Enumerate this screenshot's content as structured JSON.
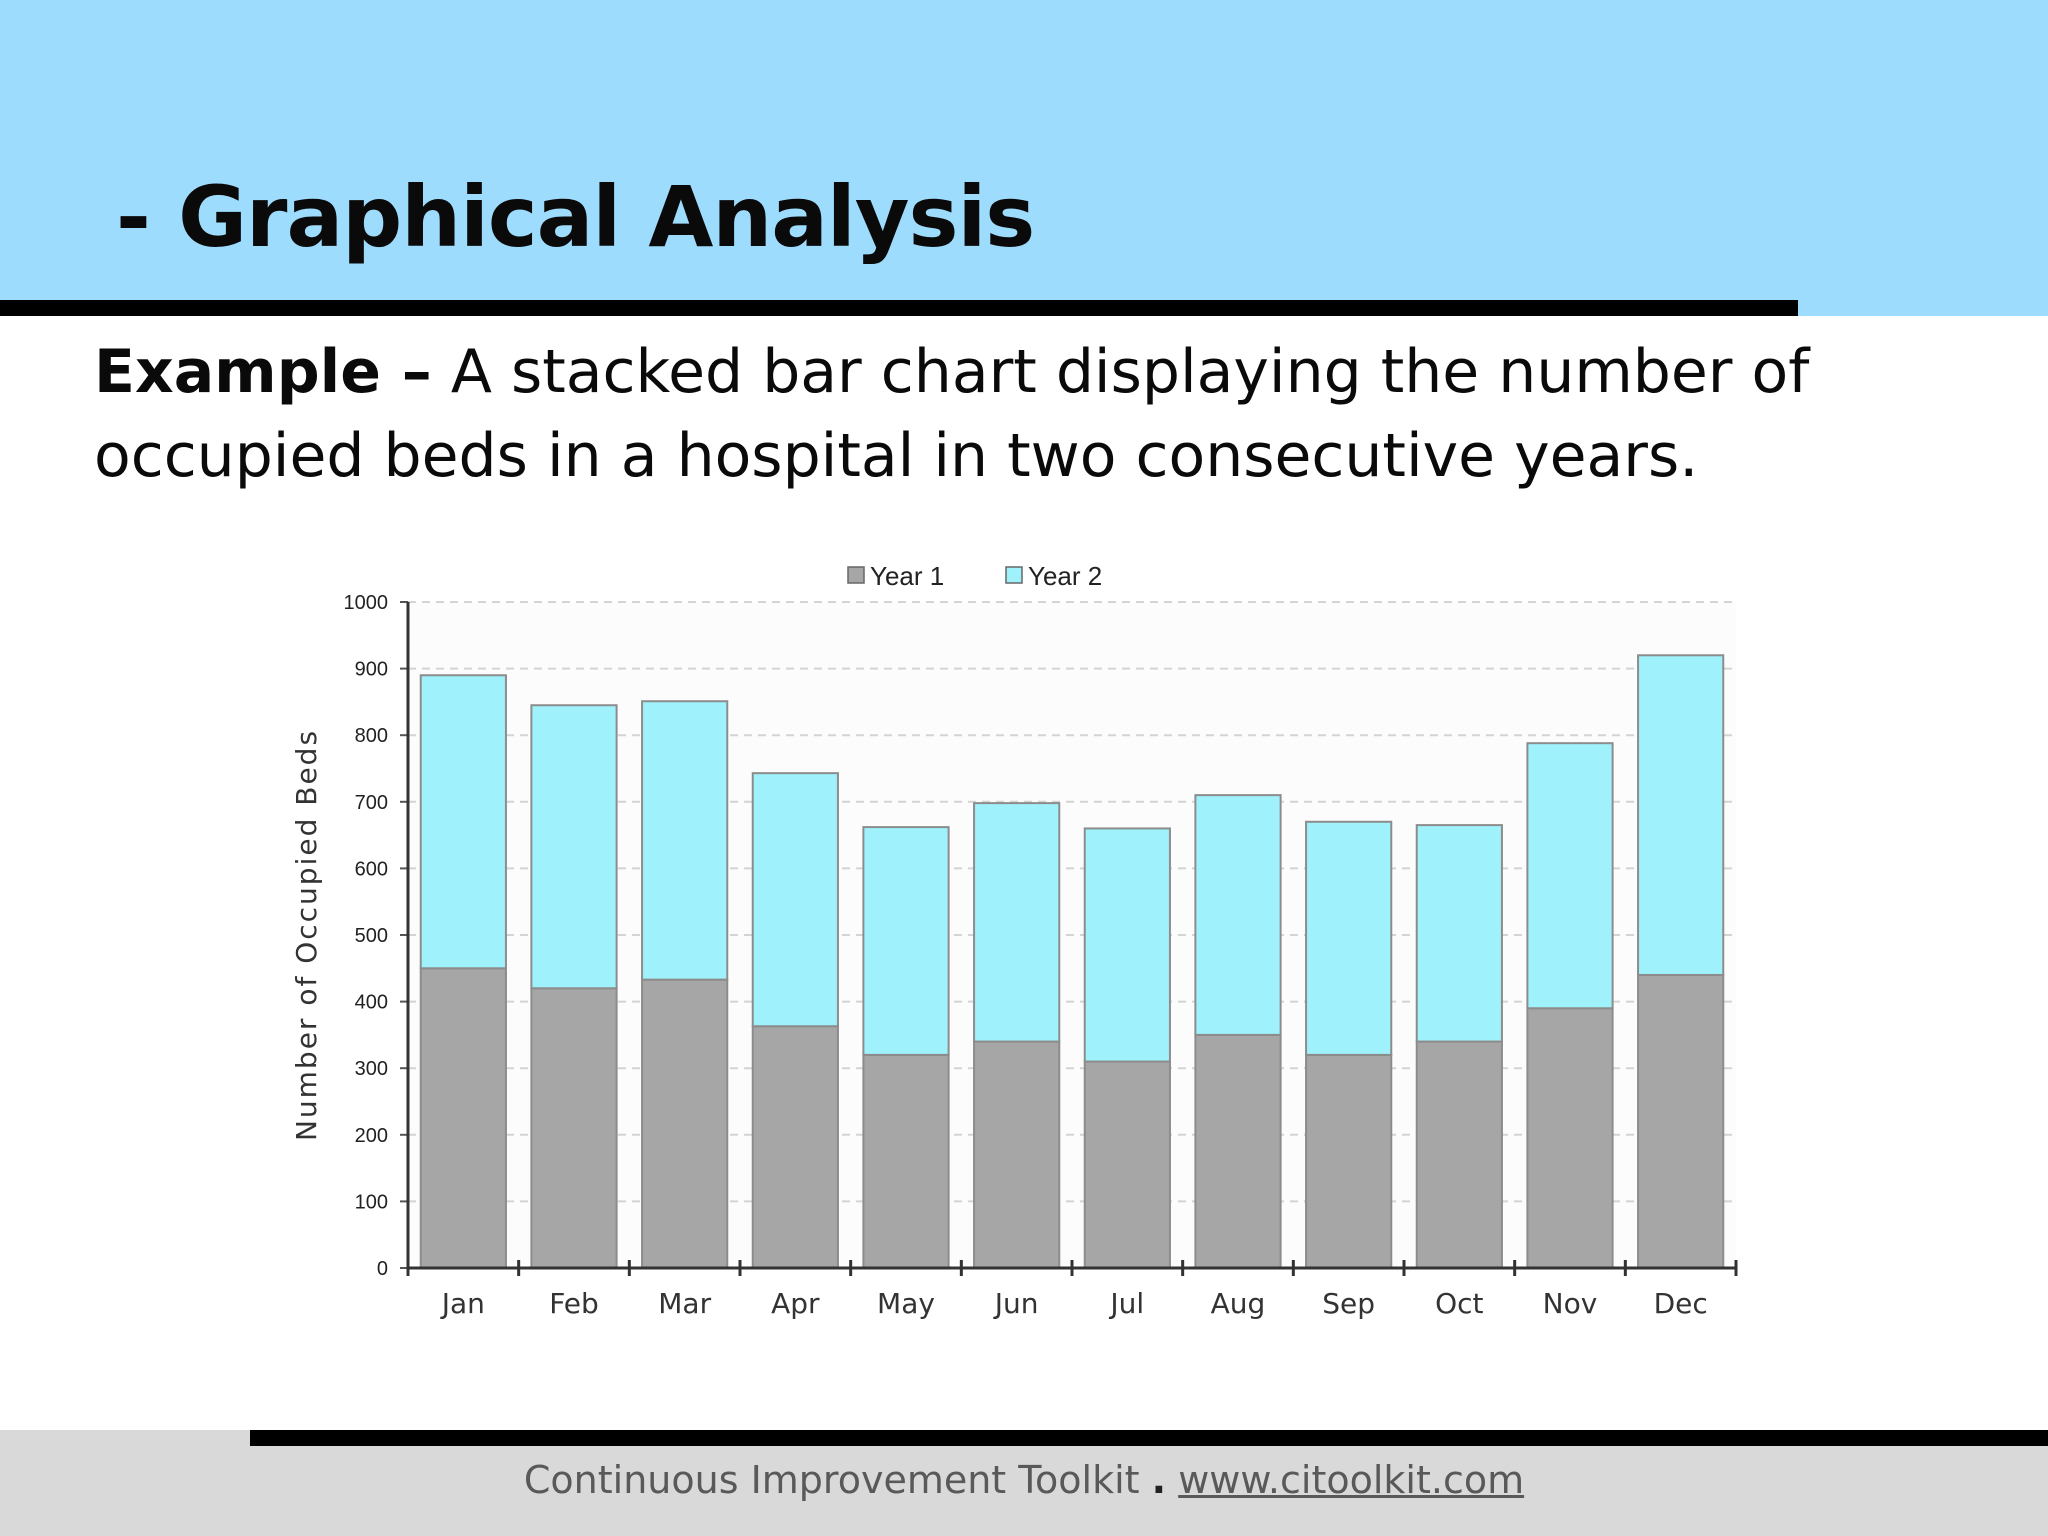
{
  "slide": {
    "title": "- Graphical Analysis",
    "description_lead": "Example –",
    "description_text": " A stacked bar chart displaying the number of occupied beds in a hospital in two consecutive years."
  },
  "footer": {
    "text": "Continuous Improvement Toolkit",
    "separator": ".",
    "link": "www.citoolkit.com"
  },
  "chart_data": {
    "type": "bar",
    "stacked": true,
    "title": "",
    "xlabel": "",
    "ylabel": "Number of Occupied Beds",
    "ylim": [
      0,
      1000
    ],
    "yticks": [
      0,
      100,
      200,
      300,
      400,
      500,
      600,
      700,
      800,
      900,
      1000
    ],
    "grid": true,
    "legend_position": "top-center",
    "categories": [
      "Jan",
      "Feb",
      "Mar",
      "Apr",
      "May",
      "Jun",
      "Jul",
      "Aug",
      "Sep",
      "Oct",
      "Nov",
      "Dec"
    ],
    "series": [
      {
        "name": "Year 1",
        "color": "#a6a6a6",
        "values": [
          450,
          420,
          433,
          363,
          320,
          340,
          310,
          350,
          320,
          340,
          390,
          440
        ]
      },
      {
        "name": "Year 2",
        "color": "#9ff2fc",
        "values": [
          440,
          425,
          418,
          380,
          342,
          358,
          350,
          360,
          350,
          325,
          398,
          480
        ]
      }
    ]
  }
}
